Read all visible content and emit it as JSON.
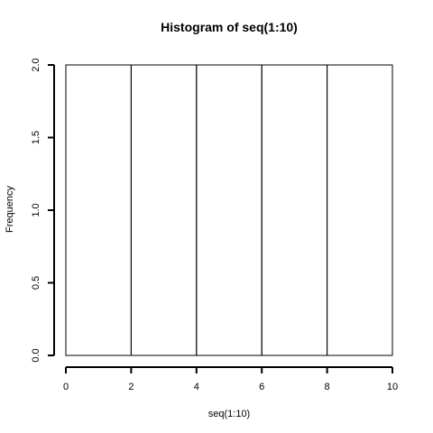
{
  "chart_data": {
    "type": "bar",
    "title": "Histogram of seq(1:10)",
    "xlabel": "seq(1:10)",
    "ylabel": "Frequency",
    "bins": [
      {
        "x0": 0,
        "x1": 2,
        "count": 2
      },
      {
        "x0": 2,
        "x1": 4,
        "count": 2
      },
      {
        "x0": 4,
        "x1": 6,
        "count": 2
      },
      {
        "x0": 6,
        "x1": 8,
        "count": 2
      },
      {
        "x0": 8,
        "x1": 10,
        "count": 2
      }
    ],
    "xlim": [
      0,
      10
    ],
    "ylim": [
      0,
      2
    ],
    "x_ticks": [
      0,
      2,
      4,
      6,
      8,
      10
    ],
    "x_tick_labels": [
      "0",
      "2",
      "4",
      "6",
      "8",
      "10"
    ],
    "y_ticks": [
      0,
      0.5,
      1,
      1.5,
      2
    ],
    "y_tick_labels": [
      "0.0",
      "0.5",
      "1.0",
      "1.5",
      "2.0"
    ],
    "grid": false,
    "legend": "none",
    "colors": {
      "bar_fill": "#ffffff",
      "bar_stroke": "#000000",
      "axis": "#000000"
    }
  }
}
